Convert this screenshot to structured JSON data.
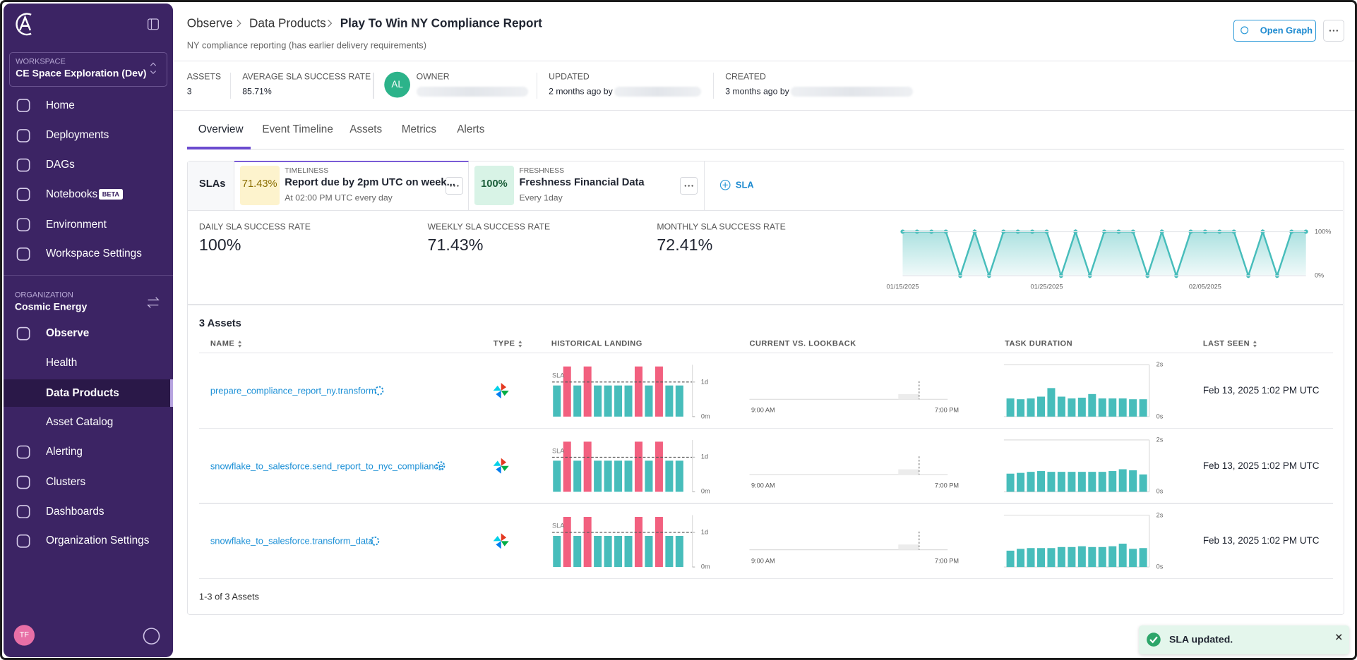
{
  "sidebar": {
    "workspace_label": "WORKSPACE",
    "workspace": "CE Space Exploration (Dev)",
    "nav": [
      "Home",
      "Deployments",
      "DAGs",
      "Notebooks",
      "Environment",
      "Workspace Settings"
    ],
    "badge": "BETA",
    "org_label": "ORGANIZATION",
    "org": "Cosmic Energy",
    "org_nav": [
      "Observe",
      "Health",
      "Data Products",
      "Asset Catalog",
      "Alerting",
      "Clusters",
      "Dashboards",
      "Organization Settings"
    ],
    "user": "TF"
  },
  "header": {
    "breadcrumbs": [
      "Observe",
      "Data Products"
    ],
    "title": "Play To Win NY Compliance Report",
    "subtitle": "NY compliance reporting (has earlier delivery requirements)",
    "button": "Open Graph"
  },
  "summary": {
    "assets_label": "ASSETS",
    "assets": "3",
    "rate_label": "AVERAGE SLA SUCCESS RATE",
    "rate": "85.71%",
    "owner_initials": "AL",
    "owner_label": "OWNER",
    "updated_label": "UPDATED",
    "updated": "2 months ago by",
    "created_label": "CREATED",
    "created": "3 months ago by"
  },
  "tabs": [
    "Overview",
    "Event Timeline",
    "Assets",
    "Metrics",
    "Alerts"
  ],
  "slas": {
    "label": "SLAs",
    "cards": [
      {
        "rate": "71.43%",
        "kind": "TIMELINESS",
        "name": "Report due by 2pm UTC on week...",
        "schedule": "At 02:00 PM UTC every day"
      },
      {
        "rate": "100%",
        "kind": "FRESHNESS",
        "name": "Freshness Financial Data",
        "schedule": "Every 1day"
      }
    ],
    "add": "SLA"
  },
  "rates": [
    {
      "label": "DAILY SLA SUCCESS RATE",
      "value": "100%"
    },
    {
      "label": "WEEKLY SLA SUCCESS RATE",
      "value": "71.43%"
    },
    {
      "label": "MONTHLY SLA SUCCESS RATE",
      "value": "72.41%"
    }
  ],
  "trend": {
    "type": "line",
    "categories": [
      "01/15/2025",
      null,
      null,
      null,
      null,
      null,
      null,
      null,
      null,
      null,
      "01/25/2025",
      null,
      null,
      null,
      null,
      null,
      null,
      null,
      null,
      null,
      null,
      "02/05/2025",
      null,
      null,
      null,
      null,
      null,
      null,
      null
    ],
    "values": [
      100,
      100,
      100,
      100,
      0,
      100,
      0,
      100,
      100,
      100,
      100,
      0,
      100,
      0,
      100,
      100,
      100,
      0,
      100,
      0,
      100,
      100,
      100,
      100,
      0,
      100,
      0,
      100,
      100
    ],
    "color": "#47bdbb",
    "ylim": [
      0,
      100
    ],
    "yticks": [
      {
        "value": 100,
        "label": "100%"
      },
      {
        "value": 0,
        "label": "0%"
      }
    ]
  },
  "assets": {
    "title": "3 Assets",
    "columns": [
      "NAME",
      "TYPE",
      "HISTORICAL LANDING",
      "CURRENT VS. LOOKBACK",
      "TASK DURATION",
      "LAST SEEN"
    ],
    "landing_axis": {
      "ylim": [
        0,
        1.5
      ],
      "yticks": [
        {
          "value": 1,
          "label": "1d"
        },
        {
          "value": 0,
          "label": "0m"
        }
      ],
      "sla": 1,
      "sla_label": "SLA",
      "colors": [
        "#47bdbb",
        "#f2607f"
      ]
    },
    "lookback_axis": {
      "xticks": [
        "9:00 AM",
        "7:00 PM"
      ]
    },
    "duration_axis": {
      "ylim": [
        0,
        2
      ],
      "yticks": [
        {
          "value": 2,
          "label": "2s"
        },
        {
          "value": 0,
          "label": "0s"
        }
      ],
      "color": "#47bdbb"
    },
    "rows": [
      {
        "name": "prepare_compliance_report_ny.transform",
        "landing": [
          0.9,
          1.45,
          0.9,
          1.45,
          0.9,
          0.9,
          0.9,
          0.9,
          1.45,
          0.9,
          1.45,
          0.9,
          0.9
        ],
        "duration": [
          0.7,
          0.67,
          0.7,
          0.77,
          1.1,
          0.77,
          0.7,
          0.73,
          0.87,
          0.7,
          0.7,
          0.7,
          0.67,
          0.67
        ],
        "last_seen": "Feb 13, 2025 1:02 PM UTC"
      },
      {
        "name": "snowflake_to_salesforce.send_report_to_nyc_compliance",
        "landing": [
          0.9,
          1.45,
          0.9,
          1.45,
          0.9,
          0.9,
          0.9,
          0.9,
          1.45,
          0.9,
          1.45,
          0.9,
          0.9
        ],
        "duration": [
          0.7,
          0.73,
          0.77,
          0.8,
          0.77,
          0.77,
          0.77,
          0.77,
          0.77,
          0.77,
          0.8,
          0.87,
          0.83,
          0.67
        ],
        "last_seen": "Feb 13, 2025 1:02 PM UTC"
      },
      {
        "name": "snowflake_to_salesforce.transform_data",
        "landing": [
          0.9,
          1.45,
          0.9,
          1.45,
          0.9,
          0.9,
          0.9,
          0.9,
          1.45,
          0.9,
          1.45,
          0.9,
          0.9
        ],
        "duration": [
          0.63,
          0.7,
          0.73,
          0.73,
          0.73,
          0.77,
          0.77,
          0.8,
          0.77,
          0.77,
          0.8,
          0.9,
          0.7,
          0.73
        ],
        "last_seen": "Feb 13, 2025 1:02 PM UTC"
      }
    ],
    "footer": "1-3 of 3 Assets"
  },
  "toast": "SLA updated."
}
